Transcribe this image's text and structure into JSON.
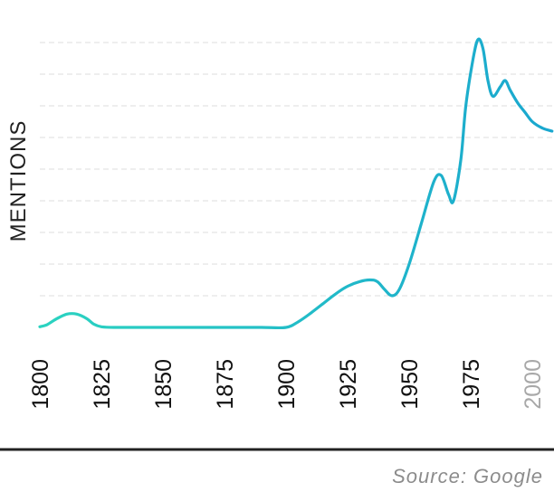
{
  "chart_data": {
    "type": "line",
    "title": "",
    "xlabel": "",
    "ylabel": "MENTIONS",
    "x_ticks": [
      "1800",
      "1825",
      "1850",
      "1875",
      "1900",
      "1925",
      "1950",
      "1975",
      "2000"
    ],
    "x_highlight_tick": "2000",
    "xlim": [
      1800,
      2008
    ],
    "ylim": [
      0,
      9.3
    ],
    "grid": true,
    "y_ticks": [
      0,
      1,
      2,
      3,
      4,
      5,
      6,
      7,
      8,
      9
    ],
    "series": [
      {
        "x": [
          1800,
          1803,
          1807,
          1811,
          1815,
          1819,
          1822,
          1825,
          1830,
          1850,
          1875,
          1890,
          1900,
          1905,
          1910,
          1915,
          1920,
          1925,
          1930,
          1934,
          1937,
          1940,
          1943,
          1946,
          1950,
          1955,
          1960,
          1963,
          1966,
          1968,
          1971,
          1973,
          1976,
          1978,
          1980,
          1982,
          1984,
          1987,
          1989,
          1991,
          1994,
          1997,
          2000,
          2004,
          2008
        ],
        "values": [
          0.02,
          0.09,
          0.28,
          0.42,
          0.42,
          0.28,
          0.1,
          0.02,
          0.0,
          0.0,
          0.0,
          0.0,
          0.0,
          0.18,
          0.45,
          0.75,
          1.05,
          1.3,
          1.45,
          1.5,
          1.45,
          1.2,
          1.0,
          1.2,
          2.0,
          3.3,
          4.6,
          4.8,
          4.2,
          4.0,
          5.3,
          7.0,
          8.5,
          9.1,
          8.8,
          7.8,
          7.3,
          7.6,
          7.8,
          7.5,
          7.1,
          6.8,
          6.5,
          6.3,
          6.2
        ]
      }
    ]
  },
  "colors": {
    "line_start": "#2bd3c0",
    "line_end": "#1aa7cf",
    "grid": "#e3e3e3",
    "baseline": "#222222",
    "tick_label": "#111111",
    "tick_label_highlight": "#a8a8a8"
  },
  "source": "Source: Google"
}
